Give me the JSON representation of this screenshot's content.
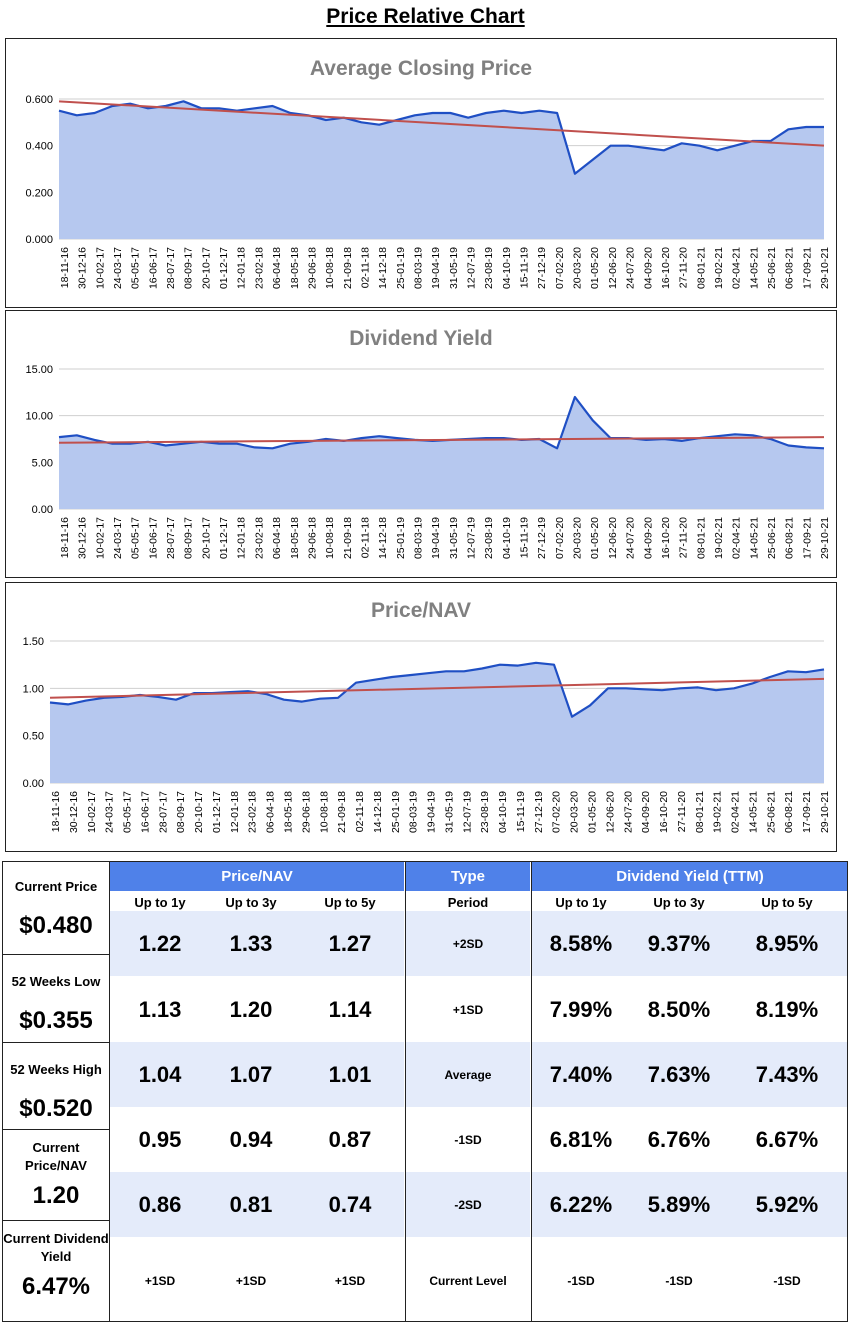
{
  "page_title": "Price Relative Chart",
  "date_labels": [
    "18-11-16",
    "30-12-16",
    "10-02-17",
    "24-03-17",
    "05-05-17",
    "16-06-17",
    "28-07-17",
    "08-09-17",
    "20-10-17",
    "01-12-17",
    "12-01-18",
    "23-02-18",
    "06-04-18",
    "18-05-18",
    "29-06-18",
    "10-08-18",
    "21-09-18",
    "02-11-18",
    "14-12-18",
    "25-01-19",
    "08-03-19",
    "19-04-19",
    "31-05-19",
    "12-07-19",
    "23-08-19",
    "04-10-19",
    "15-11-19",
    "27-12-19",
    "07-02-20",
    "20-03-20",
    "01-05-20",
    "12-06-20",
    "24-07-20",
    "04-09-20",
    "16-10-20",
    "27-11-20",
    "08-01-21",
    "19-02-21",
    "02-04-21",
    "14-05-21",
    "25-06-21",
    "06-08-21",
    "17-09-21",
    "29-10-21"
  ],
  "colors": {
    "line": "#1f4fc4",
    "fill": "#b6c8ef",
    "trend": "#c0504d",
    "header": "#4f81e9",
    "band": "#e4ebfa",
    "title_grey": "#808080"
  },
  "chart_data": [
    {
      "type": "area",
      "title": "Average Closing Price",
      "xlabel": "",
      "ylabel": "",
      "ylim": [
        0,
        0.6
      ],
      "yticks": [
        "0.000",
        "0.200",
        "0.400",
        "0.600"
      ],
      "grid": true,
      "values": [
        0.55,
        0.53,
        0.54,
        0.57,
        0.58,
        0.56,
        0.57,
        0.59,
        0.56,
        0.56,
        0.55,
        0.56,
        0.57,
        0.54,
        0.53,
        0.51,
        0.52,
        0.5,
        0.49,
        0.51,
        0.53,
        0.54,
        0.54,
        0.52,
        0.54,
        0.55,
        0.54,
        0.55,
        0.54,
        0.28,
        0.34,
        0.4,
        0.4,
        0.39,
        0.38,
        0.41,
        0.4,
        0.38,
        0.4,
        0.42,
        0.42,
        0.47,
        0.48,
        0.48
      ],
      "trend": [
        0.59,
        0.4
      ]
    },
    {
      "type": "area",
      "title": "Dividend Yield",
      "xlabel": "",
      "ylabel": "",
      "ylim": [
        0,
        15
      ],
      "yticks": [
        "0.00",
        "5.00",
        "10.00",
        "15.00"
      ],
      "grid": true,
      "values": [
        7.7,
        7.9,
        7.4,
        7.0,
        7.0,
        7.2,
        6.8,
        7.0,
        7.2,
        7.0,
        7.0,
        6.6,
        6.5,
        7.0,
        7.2,
        7.5,
        7.3,
        7.6,
        7.8,
        7.6,
        7.4,
        7.3,
        7.4,
        7.5,
        7.6,
        7.6,
        7.4,
        7.5,
        6.5,
        12.0,
        9.5,
        7.6,
        7.6,
        7.4,
        7.5,
        7.3,
        7.6,
        7.8,
        8.0,
        7.9,
        7.5,
        6.8,
        6.6,
        6.5
      ],
      "trend": [
        7.1,
        7.7
      ]
    },
    {
      "type": "area",
      "title": "Price/NAV",
      "xlabel": "",
      "ylabel": "",
      "ylim": [
        0,
        1.5
      ],
      "yticks": [
        "0.00",
        "0.50",
        "1.00",
        "1.50"
      ],
      "grid": true,
      "values": [
        0.85,
        0.83,
        0.87,
        0.9,
        0.91,
        0.93,
        0.91,
        0.88,
        0.95,
        0.95,
        0.96,
        0.97,
        0.94,
        0.88,
        0.86,
        0.89,
        0.9,
        1.06,
        1.09,
        1.12,
        1.14,
        1.16,
        1.18,
        1.18,
        1.21,
        1.25,
        1.24,
        1.27,
        1.25,
        0.7,
        0.82,
        1.0,
        1.0,
        0.99,
        0.98,
        1.0,
        1.01,
        0.98,
        1.0,
        1.05,
        1.12,
        1.18,
        1.17,
        1.2
      ],
      "trend": [
        0.9,
        1.1
      ]
    }
  ],
  "stats": {
    "left": [
      {
        "label": "Current Price",
        "value": "$0.480"
      },
      {
        "label": "52 Weeks Low",
        "value": "$0.355"
      },
      {
        "label": "52 Weeks High",
        "value": "$0.520"
      },
      {
        "label": "Current Price/NAV",
        "value": "1.20"
      },
      {
        "label": "Current Dividend Yield",
        "value": "6.47%"
      }
    ],
    "pnav_header": "Price/NAV",
    "type_header": "Type",
    "dy_header": "Dividend Yield (TTM)",
    "sub_headers": [
      "Up to 1y",
      "Up to 3y",
      "Up to 5y",
      "Period",
      "Up to 1y",
      "Up to 3y",
      "Up to 5y"
    ],
    "rows": [
      {
        "pnav": [
          "1.22",
          "1.33",
          "1.27"
        ],
        "type": "+2SD",
        "dy": [
          "8.58%",
          "9.37%",
          "8.95%"
        ]
      },
      {
        "pnav": [
          "1.13",
          "1.20",
          "1.14"
        ],
        "type": "+1SD",
        "dy": [
          "7.99%",
          "8.50%",
          "8.19%"
        ]
      },
      {
        "pnav": [
          "1.04",
          "1.07",
          "1.01"
        ],
        "type": "Average",
        "dy": [
          "7.40%",
          "7.63%",
          "7.43%"
        ]
      },
      {
        "pnav": [
          "0.95",
          "0.94",
          "0.87"
        ],
        "type": "-1SD",
        "dy": [
          "6.81%",
          "6.76%",
          "6.67%"
        ]
      },
      {
        "pnav": [
          "0.86",
          "0.81",
          "0.74"
        ],
        "type": "-2SD",
        "dy": [
          "6.22%",
          "5.89%",
          "5.92%"
        ]
      }
    ],
    "current_level": {
      "pnav": [
        "+1SD",
        "+1SD",
        "+1SD"
      ],
      "type": "Current Level",
      "dy": [
        "-1SD",
        "-1SD",
        "-1SD"
      ]
    }
  }
}
